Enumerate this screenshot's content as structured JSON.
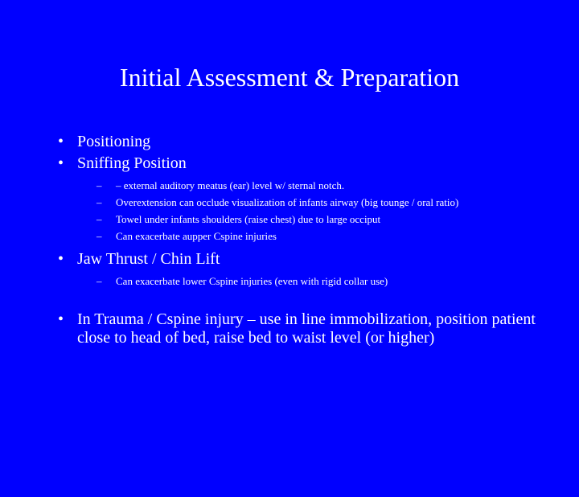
{
  "slide": {
    "background_color": "#0000ff",
    "text_color": "#ffffff",
    "title": "Initial Assessment & Preparation",
    "title_fontsize": 32,
    "body_fontsize_l1": 20,
    "body_fontsize_l2": 13,
    "font_family": "Times New Roman",
    "bullets": [
      {
        "level": 1,
        "mark": "•",
        "text": "Positioning"
      },
      {
        "level": 1,
        "mark": "•",
        "text": "Sniffing Position"
      },
      {
        "level": 2,
        "mark": "–",
        "text": "– external auditory meatus (ear) level w/ sternal notch."
      },
      {
        "level": 2,
        "mark": "–",
        "text": "Overextension can occlude visualization of infants airway (big tounge / oral ratio)"
      },
      {
        "level": 2,
        "mark": "–",
        "text": "Towel under infants shoulders (raise chest) due to large occiput"
      },
      {
        "level": 2,
        "mark": "–",
        "text": "Can exacerbate aupper Cspine injuries"
      },
      {
        "level": 1,
        "mark": "•",
        "text": "Jaw Thrust / Chin Lift"
      },
      {
        "level": 2,
        "mark": "–",
        "text": "Can exacerbate lower Cspine injuries (even with rigid collar use)"
      },
      {
        "level": 1,
        "mark": "•",
        "text": "In Trauma / Cspine injury – use in line immobilization, position patient close to head of bed, raise bed to waist level (or higher)"
      }
    ]
  }
}
